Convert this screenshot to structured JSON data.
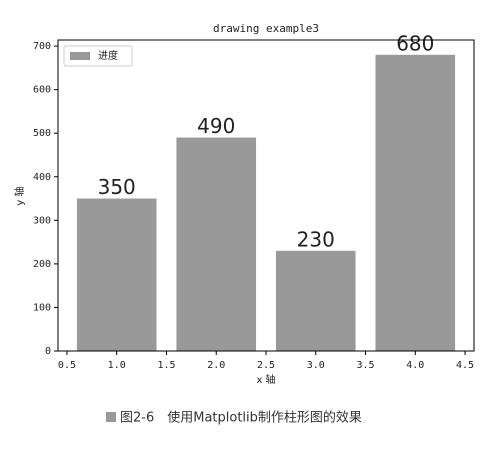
{
  "chart_data": {
    "type": "bar",
    "title": "drawing example3",
    "x": [
      1,
      2,
      3,
      4
    ],
    "values": [
      350,
      490,
      230,
      680
    ],
    "series_name": "进度",
    "color": "#999999",
    "xlabel": "x 轴",
    "ylabel": "y 轴",
    "xlim": [
      0.41,
      4.59
    ],
    "xticks": [
      0.5,
      {
        "value": 1,
        "label": "1.0"
      },
      1.5,
      {
        "value": 2,
        "label": "2.0"
      },
      2.5,
      {
        "value": 3,
        "label": "3.0"
      },
      3.5,
      {
        "value": 4,
        "label": "4.0"
      },
      4.5
    ],
    "ylim": [
      0,
      714
    ],
    "yticks": [
      0,
      100,
      200,
      300,
      400,
      500,
      600,
      700
    ],
    "bar_width": 0.8,
    "legend": "upper left"
  },
  "caption": "图2-6　使用Matplotlib制作柱形图的效果"
}
